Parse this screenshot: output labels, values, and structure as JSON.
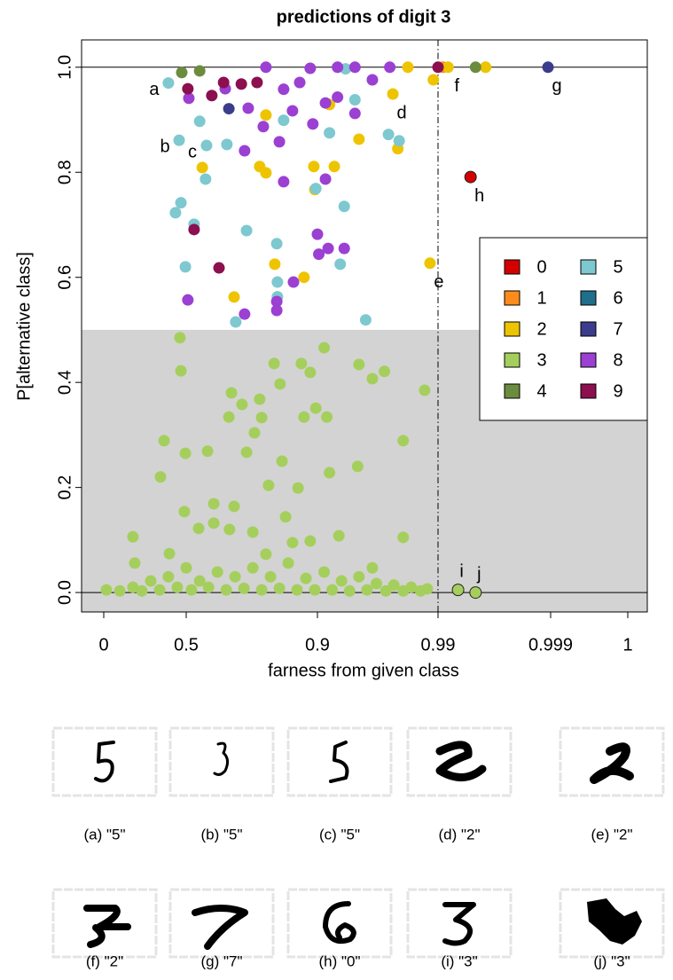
{
  "chart_data": {
    "type": "scatter",
    "title": "predictions of digit 3",
    "xlabel": "farness from given class",
    "ylabel": "P[alternative class]",
    "xticks": [
      0,
      0.5,
      0.9,
      0.99,
      0.999,
      1
    ],
    "ylim": [
      -0.037,
      1.052
    ],
    "yticks": [
      {
        "value": 0,
        "label": "0.0"
      },
      0.2,
      0.4,
      0.6,
      0.8,
      {
        "value": 1,
        "label": "1.0"
      }
    ],
    "shade_below": 0.5,
    "hlines": [
      0,
      1
    ],
    "vline": 0.99,
    "legend": "right",
    "series": [
      {
        "name": "0",
        "color": "#d40000",
        "x": [
          0.9926
        ],
        "y": [
          0.791
        ],
        "labels": [
          "h"
        ]
      },
      {
        "name": "1",
        "color": "#ff8c1a",
        "x": [
          0.9904
        ],
        "y": [
          1.0
        ]
      },
      {
        "name": "2",
        "color": "#eec400",
        "x": [
          0.9563,
          0.984,
          0.9908,
          0.9938,
          0.9675,
          0.549,
          0.724,
          0.646,
          0.77,
          0.859,
          0.889,
          0.9126,
          0.892,
          0.931,
          0.96,
          0.743,
          0.909,
          0.9865,
          0.743
        ],
        "y": [
          0.949,
          0.627,
          1.0,
          1.0,
          1.0,
          0.809,
          0.811,
          0.5625,
          0.625,
          0.6,
          0.811,
          0.811,
          0.767,
          0.863,
          0.845,
          0.909,
          0.929,
          0.976,
          0.799
        ],
        "labels": [
          "d",
          "e",
          "f",
          null,
          null,
          null,
          null,
          null,
          null,
          null,
          null,
          null,
          null,
          null,
          null,
          null,
          null,
          null,
          null
        ]
      },
      {
        "name": "3",
        "color": "#a5cf5c",
        "x": [
          0.9916,
          0.993,
          0.462,
          0.468,
          0.366,
          0.344,
          0.495,
          0.565,
          0.489,
          0.584,
          0.632,
          0.646,
          0.63,
          0.638,
          0.67,
          0.684,
          0.708,
          0.724,
          0.73,
          0.751,
          0.768,
          0.786,
          0.792,
          0.803,
          0.824,
          0.841,
          0.851,
          0.859,
          0.878,
          0.895,
          0.905,
          0.907,
          0.909,
          0.916,
          0.93,
          0.931,
          0.941,
          0.95,
          0.964,
          0.98,
          0.964,
          0.538,
          0.177,
          0.188,
          0.398,
          0.584,
          0.703,
          0.878,
          0.743,
          0.941,
          0.016,
          0.097,
          0.177,
          0.231,
          0.285,
          0.339,
          0.392,
          0.446,
          0.5,
          0.516,
          0.541,
          0.568,
          0.595,
          0.622,
          0.649,
          0.676,
          0.703,
          0.73,
          0.757,
          0.784,
          0.811,
          0.838,
          0.865,
          0.892,
          0.905,
          0.911,
          0.918,
          0.924,
          0.931,
          0.937,
          0.944,
          0.951,
          0.957,
          0.964,
          0.97,
          0.977,
          0.982
        ],
        "y": [
          0.005,
          0,
          0.485,
          0.422,
          0.289,
          0.22,
          0.265,
          0.269,
          0.154,
          0.169,
          0.12,
          0.164,
          0.334,
          0.38,
          0.358,
          0.267,
          0.304,
          0.368,
          0.333,
          0.204,
          0.436,
          0.397,
          0.25,
          0.144,
          0.095,
          0.199,
          0.436,
          0.334,
          0.419,
          0.351,
          0.466,
          0.334,
          0.228,
          0.108,
          0.24,
          0.434,
          0.407,
          0.421,
          0.289,
          0.385,
          0.105,
          0.122,
          0.106,
          0.056,
          0.074,
          0.132,
          0.115,
          0.098,
          0.073,
          0.047,
          0.005,
          0.003,
          0.01,
          0.003,
          0.022,
          0.005,
          0.03,
          0.01,
          0.047,
          0.005,
          0.022,
          0.01,
          0.039,
          0.005,
          0.03,
          0.008,
          0.047,
          0.005,
          0.03,
          0.008,
          0.056,
          0.005,
          0.027,
          0.005,
          0.039,
          0.005,
          0.022,
          0.003,
          0.03,
          0.005,
          0.017,
          0.003,
          0.014,
          0.003,
          0.01,
          0.003,
          0.007
        ],
        "labels": [
          "i",
          "j",
          null,
          null,
          null,
          null,
          null,
          null,
          null,
          null,
          null,
          null,
          null,
          null,
          null,
          null,
          null,
          null,
          null,
          null,
          null,
          null,
          null,
          null,
          null,
          null,
          null,
          null,
          null,
          null,
          null,
          null,
          null,
          null,
          null,
          null,
          null,
          null,
          null,
          null,
          null,
          null,
          null,
          null,
          null,
          null,
          null,
          null,
          null,
          null,
          null,
          null,
          null,
          null,
          null,
          null,
          null,
          null,
          null,
          null,
          null,
          null,
          null,
          null,
          null,
          null,
          null,
          null,
          null,
          null,
          null,
          null,
          null,
          null,
          null,
          null,
          null,
          null,
          null,
          null,
          null,
          null,
          null,
          null,
          null,
          null,
          null
        ]
      },
      {
        "name": "4",
        "color": "#6b8c3e",
        "x": [
          0.473,
          0.541,
          0.993
        ],
        "y": [
          0.99,
          0.993,
          1.0
        ]
      },
      {
        "name": "5",
        "color": "#7ec8d0",
        "x": [
          0.392,
          0.457,
          0.562,
          0.559,
          0.541,
          0.624,
          0.435,
          0.468,
          0.524,
          0.495,
          0.684,
          0.776,
          0.778,
          0.778,
          0.651,
          0.895,
          0.909,
          0.92,
          0.917,
          0.936,
          0.953,
          0.961,
          0.928,
          0.797,
          0.921
        ],
        "y": [
          0.97,
          0.861,
          0.851,
          0.787,
          0.897,
          0.853,
          0.723,
          0.742,
          0.701,
          0.62,
          0.689,
          0.664,
          0.563,
          0.591,
          0.515,
          0.769,
          0.875,
          0.735,
          0.625,
          0.519,
          0.872,
          0.86,
          0.938,
          0.899,
          0.997
        ],
        "labels": [
          "a",
          "b",
          "c",
          null,
          null,
          null,
          null,
          null,
          null,
          null,
          null,
          null,
          null,
          null,
          null,
          null,
          null,
          null,
          null,
          null,
          null,
          null,
          null,
          null,
          null
        ]
      },
      {
        "name": "6",
        "color": "#1f6e8c",
        "x": [],
        "y": []
      },
      {
        "name": "7",
        "color": "#3c3c8c",
        "x": [
          0.99879,
          0.63
        ],
        "y": [
          1.0,
          0.921
        ],
        "labels": [
          "g",
          null
        ]
      },
      {
        "name": "8",
        "color": "#9b40d2",
        "x": [
          0.508,
          0.619,
          0.689,
          0.735,
          0.797,
          0.824,
          0.846,
          0.886,
          0.906,
          0.915,
          0.928,
          0.941,
          0.678,
          0.784,
          0.797,
          0.906,
          0.678,
          0.776,
          0.776,
          0.827,
          0.505,
          0.9,
          0.901,
          0.908,
          0.92,
          0.878,
          0.928,
          0.954,
          0.915,
          0.743
        ],
        "y": [
          0.941,
          0.959,
          0.922,
          0.887,
          0.958,
          0.917,
          0.971,
          0.892,
          0.932,
          0.943,
          0.912,
          0.976,
          0.841,
          0.858,
          0.782,
          0.787,
          0.53,
          0.554,
          0.537,
          0.591,
          0.557,
          0.682,
          0.644,
          0.655,
          0.655,
          0.998,
          1.0,
          1.0,
          1.0,
          1.0
        ]
      },
      {
        "name": "9",
        "color": "#8c0f50",
        "x": [
          0.505,
          0.578,
          0.614,
          0.668,
          0.524,
          0.6,
          0.716,
          0.99
        ],
        "y": [
          0.959,
          0.946,
          0.971,
          0.968,
          0.691,
          0.618,
          0.971,
          1.0
        ]
      }
    ]
  },
  "figures": [
    {
      "caption": "(a) \"5\""
    },
    {
      "caption": "(b) \"5\""
    },
    {
      "caption": "(c) \"5\""
    },
    {
      "caption": "(d) \"2\""
    },
    {
      "caption": "(e) \"2\""
    },
    {
      "caption": "(f) \"2\""
    },
    {
      "caption": "(g) \"7\""
    },
    {
      "caption": "(h) \"0\""
    },
    {
      "caption": "(i) \"3\""
    },
    {
      "caption": "(j) \"3\""
    }
  ]
}
